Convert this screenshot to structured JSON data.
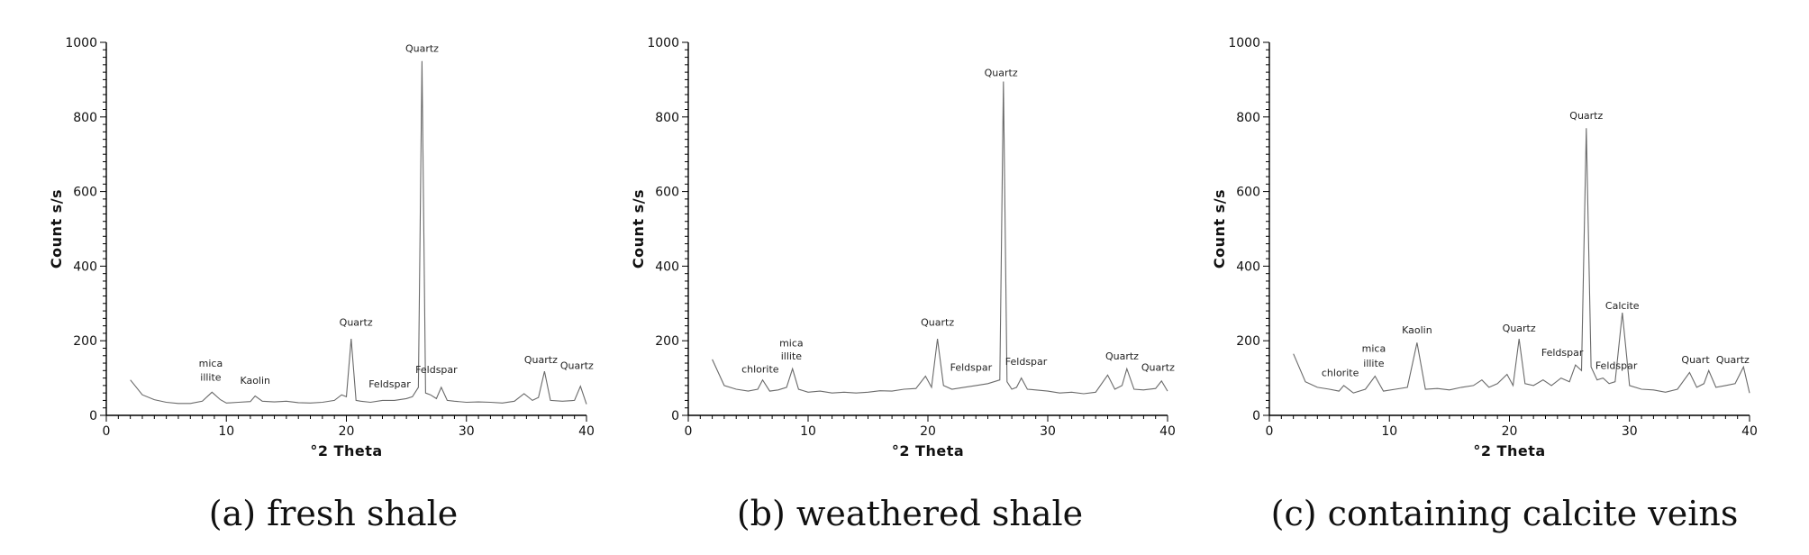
{
  "chart_data": [
    {
      "type": "line",
      "caption": "(a) fresh shale",
      "xlabel": "°2 Theta",
      "ylabel": "Count s/s",
      "xlim": [
        0,
        40
      ],
      "ylim": [
        0,
        1000
      ],
      "x_ticks": [
        0,
        10,
        20,
        30,
        40
      ],
      "y_ticks": [
        0,
        200,
        400,
        600,
        800,
        1000
      ],
      "series": [
        {
          "x": [
            2,
            3,
            4,
            5,
            6,
            7,
            8,
            8.8,
            9.5,
            10,
            11,
            12,
            12.4,
            13,
            14,
            15,
            16,
            17,
            18,
            19,
            19.6,
            20,
            20.4,
            20.8,
            21.2,
            22,
            23,
            24,
            25,
            25.5,
            26,
            26.3,
            26.6,
            27,
            27.5,
            27.9,
            28.4,
            29,
            30,
            31,
            32,
            33,
            34,
            34.8,
            35.5,
            36,
            36.5,
            37,
            38,
            39,
            39.5,
            40
          ],
          "y": [
            95,
            55,
            42,
            35,
            32,
            32,
            38,
            62,
            42,
            33,
            35,
            37,
            52,
            38,
            36,
            38,
            34,
            33,
            35,
            40,
            55,
            50,
            205,
            40,
            38,
            35,
            40,
            40,
            45,
            50,
            75,
            950,
            60,
            55,
            45,
            75,
            40,
            38,
            35,
            36,
            35,
            33,
            38,
            58,
            40,
            48,
            118,
            40,
            38,
            40,
            78,
            30
          ]
        }
      ],
      "annotations": [
        {
          "text": "mica",
          "x": 8.7,
          "y": 130
        },
        {
          "text": "illite",
          "x": 8.7,
          "y": 93
        },
        {
          "text": "Kaolin",
          "x": 12.4,
          "y": 85
        },
        {
          "text": "Quartz",
          "x": 20.8,
          "y": 240
        },
        {
          "text": "Quartz",
          "x": 26.3,
          "y": 975
        },
        {
          "text": "Feldspar",
          "x": 23.6,
          "y": 75
        },
        {
          "text": "Feldspar",
          "x": 27.5,
          "y": 113
        },
        {
          "text": "Quartz",
          "x": 36.2,
          "y": 140
        },
        {
          "text": "Quartz",
          "x": 39.2,
          "y": 125
        }
      ]
    },
    {
      "type": "line",
      "caption": "(b) weathered shale",
      "xlabel": "°2 Theta",
      "ylabel": "Count s/s",
      "xlim": [
        0,
        40
      ],
      "ylim": [
        0,
        1000
      ],
      "x_ticks": [
        0,
        10,
        20,
        30,
        40
      ],
      "y_ticks": [
        0,
        200,
        400,
        600,
        800,
        1000
      ],
      "series": [
        {
          "x": [
            2,
            3,
            4,
            5,
            5.8,
            6.2,
            6.8,
            7.5,
            8.2,
            8.7,
            9.2,
            10,
            11,
            12,
            13,
            14,
            15,
            16,
            17,
            18,
            19,
            19.8,
            20.3,
            20.8,
            21.3,
            22,
            23,
            24,
            25,
            26,
            26.3,
            26.6,
            27,
            27.4,
            27.8,
            28.3,
            29,
            30,
            31,
            32,
            33,
            34,
            35,
            35.6,
            36.2,
            36.6,
            37.2,
            38,
            39,
            39.5,
            40
          ],
          "y": [
            150,
            80,
            70,
            65,
            70,
            95,
            65,
            68,
            75,
            125,
            70,
            62,
            65,
            60,
            62,
            60,
            62,
            66,
            65,
            70,
            72,
            105,
            75,
            205,
            80,
            70,
            75,
            80,
            85,
            95,
            895,
            90,
            70,
            75,
            100,
            70,
            68,
            65,
            60,
            62,
            58,
            62,
            108,
            70,
            80,
            125,
            70,
            68,
            72,
            92,
            65
          ]
        }
      ],
      "annotations": [
        {
          "text": "chlorite",
          "x": 6.0,
          "y": 115
        },
        {
          "text": "mica",
          "x": 8.6,
          "y": 185
        },
        {
          "text": "illite",
          "x": 8.6,
          "y": 150
        },
        {
          "text": "Quartz",
          "x": 20.8,
          "y": 240
        },
        {
          "text": "Quartz",
          "x": 26.1,
          "y": 910
        },
        {
          "text": "Feldspar",
          "x": 23.6,
          "y": 120
        },
        {
          "text": "Feldspar",
          "x": 28.2,
          "y": 135
        },
        {
          "text": "Quartz",
          "x": 36.2,
          "y": 150
        },
        {
          "text": "Quartz",
          "x": 39.2,
          "y": 120
        }
      ]
    },
    {
      "type": "line",
      "caption": "(c) containing calcite veins",
      "xlabel": "°2 Theta",
      "ylabel": "Count s/s",
      "xlim": [
        0,
        40
      ],
      "ylim": [
        0,
        1000
      ],
      "x_ticks": [
        0,
        10,
        20,
        30,
        40
      ],
      "y_ticks": [
        0,
        200,
        400,
        600,
        800,
        1000
      ],
      "series": [
        {
          "x": [
            2,
            3,
            4,
            5,
            5.8,
            6.2,
            7,
            8,
            8.8,
            9.5,
            10.5,
            11.5,
            12.3,
            13,
            14,
            15,
            16,
            17,
            17.7,
            18.3,
            19,
            19.8,
            20.3,
            20.8,
            21.3,
            22,
            22.8,
            23.5,
            24.3,
            25,
            25.5,
            26,
            26.4,
            26.8,
            27.3,
            27.8,
            28.3,
            28.8,
            29.4,
            30,
            31,
            32,
            33,
            34,
            35,
            35.6,
            36.2,
            36.6,
            37.2,
            38,
            38.8,
            39.5,
            40
          ],
          "y": [
            165,
            90,
            75,
            70,
            65,
            80,
            60,
            70,
            105,
            65,
            70,
            75,
            195,
            70,
            72,
            68,
            75,
            80,
            95,
            75,
            85,
            110,
            80,
            205,
            85,
            80,
            95,
            80,
            100,
            90,
            135,
            120,
            770,
            130,
            95,
            100,
            85,
            90,
            275,
            80,
            70,
            68,
            62,
            70,
            115,
            75,
            85,
            120,
            75,
            80,
            85,
            130,
            60
          ]
        }
      ],
      "annotations": [
        {
          "text": "chlorite",
          "x": 5.9,
          "y": 105
        },
        {
          "text": "mica",
          "x": 8.7,
          "y": 170
        },
        {
          "text": "illite",
          "x": 8.7,
          "y": 130
        },
        {
          "text": "Kaolin",
          "x": 12.3,
          "y": 220
        },
        {
          "text": "Quartz",
          "x": 20.8,
          "y": 225
        },
        {
          "text": "Quartz",
          "x": 26.4,
          "y": 795
        },
        {
          "text": "Feldspar",
          "x": 24.4,
          "y": 160
        },
        {
          "text": "Feldspar",
          "x": 28.9,
          "y": 125
        },
        {
          "text": "Calcite",
          "x": 29.4,
          "y": 285,
          "color": "#c0392b"
        },
        {
          "text": "Quart",
          "x": 35.5,
          "y": 140
        },
        {
          "text": "Quartz",
          "x": 38.6,
          "y": 140
        }
      ]
    }
  ]
}
